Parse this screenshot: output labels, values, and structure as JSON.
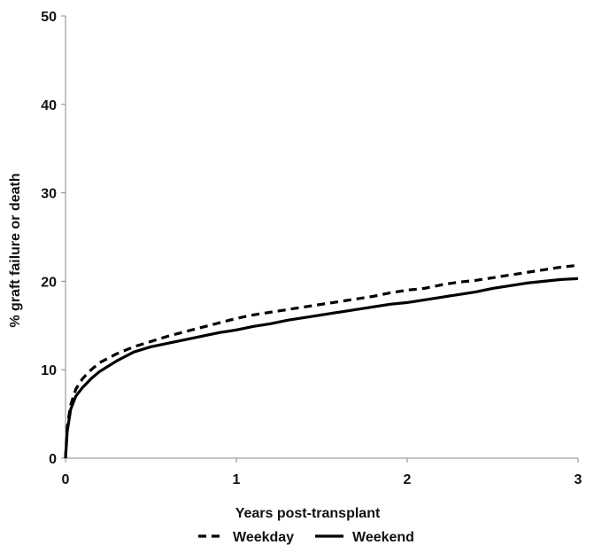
{
  "chart_data": {
    "type": "line",
    "title": "",
    "xlabel": "Years post-transplant",
    "ylabel": "% graft failure or death",
    "xlim": [
      0,
      3
    ],
    "ylim": [
      0,
      50
    ],
    "xticks": [
      0,
      1,
      2,
      3
    ],
    "yticks": [
      0,
      10,
      20,
      30,
      40,
      50
    ],
    "grid": false,
    "legend_position": "bottom",
    "series": [
      {
        "name": "Weekday",
        "style": "dashed",
        "color": "#000000",
        "x": [
          0,
          0.01,
          0.03,
          0.06,
          0.1,
          0.15,
          0.2,
          0.3,
          0.4,
          0.5,
          0.6,
          0.7,
          0.8,
          0.9,
          1.0,
          1.1,
          1.2,
          1.3,
          1.4,
          1.5,
          1.6,
          1.7,
          1.8,
          1.9,
          2.0,
          2.1,
          2.2,
          2.3,
          2.4,
          2.5,
          2.6,
          2.7,
          2.8,
          2.9,
          3.0
        ],
        "y": [
          0,
          3.5,
          6.0,
          7.8,
          9.0,
          10.0,
          10.8,
          11.8,
          12.6,
          13.2,
          13.8,
          14.3,
          14.8,
          15.3,
          15.8,
          16.2,
          16.5,
          16.8,
          17.1,
          17.4,
          17.7,
          18.0,
          18.3,
          18.7,
          19.0,
          19.2,
          19.6,
          19.9,
          20.1,
          20.4,
          20.7,
          21.0,
          21.3,
          21.6,
          21.8
        ]
      },
      {
        "name": "Weekend",
        "style": "solid",
        "color": "#000000",
        "x": [
          0,
          0.01,
          0.03,
          0.06,
          0.1,
          0.15,
          0.2,
          0.3,
          0.4,
          0.5,
          0.6,
          0.7,
          0.8,
          0.9,
          1.0,
          1.1,
          1.2,
          1.3,
          1.4,
          1.5,
          1.6,
          1.7,
          1.8,
          1.9,
          2.0,
          2.1,
          2.2,
          2.3,
          2.4,
          2.5,
          2.6,
          2.7,
          2.8,
          2.9,
          3.0
        ],
        "y": [
          0,
          3.0,
          5.5,
          7.0,
          8.0,
          9.0,
          9.8,
          11.0,
          12.0,
          12.6,
          13.0,
          13.4,
          13.8,
          14.2,
          14.5,
          14.9,
          15.2,
          15.6,
          15.9,
          16.2,
          16.5,
          16.8,
          17.1,
          17.4,
          17.6,
          17.9,
          18.2,
          18.5,
          18.8,
          19.2,
          19.5,
          19.8,
          20.0,
          20.2,
          20.3
        ]
      }
    ]
  }
}
